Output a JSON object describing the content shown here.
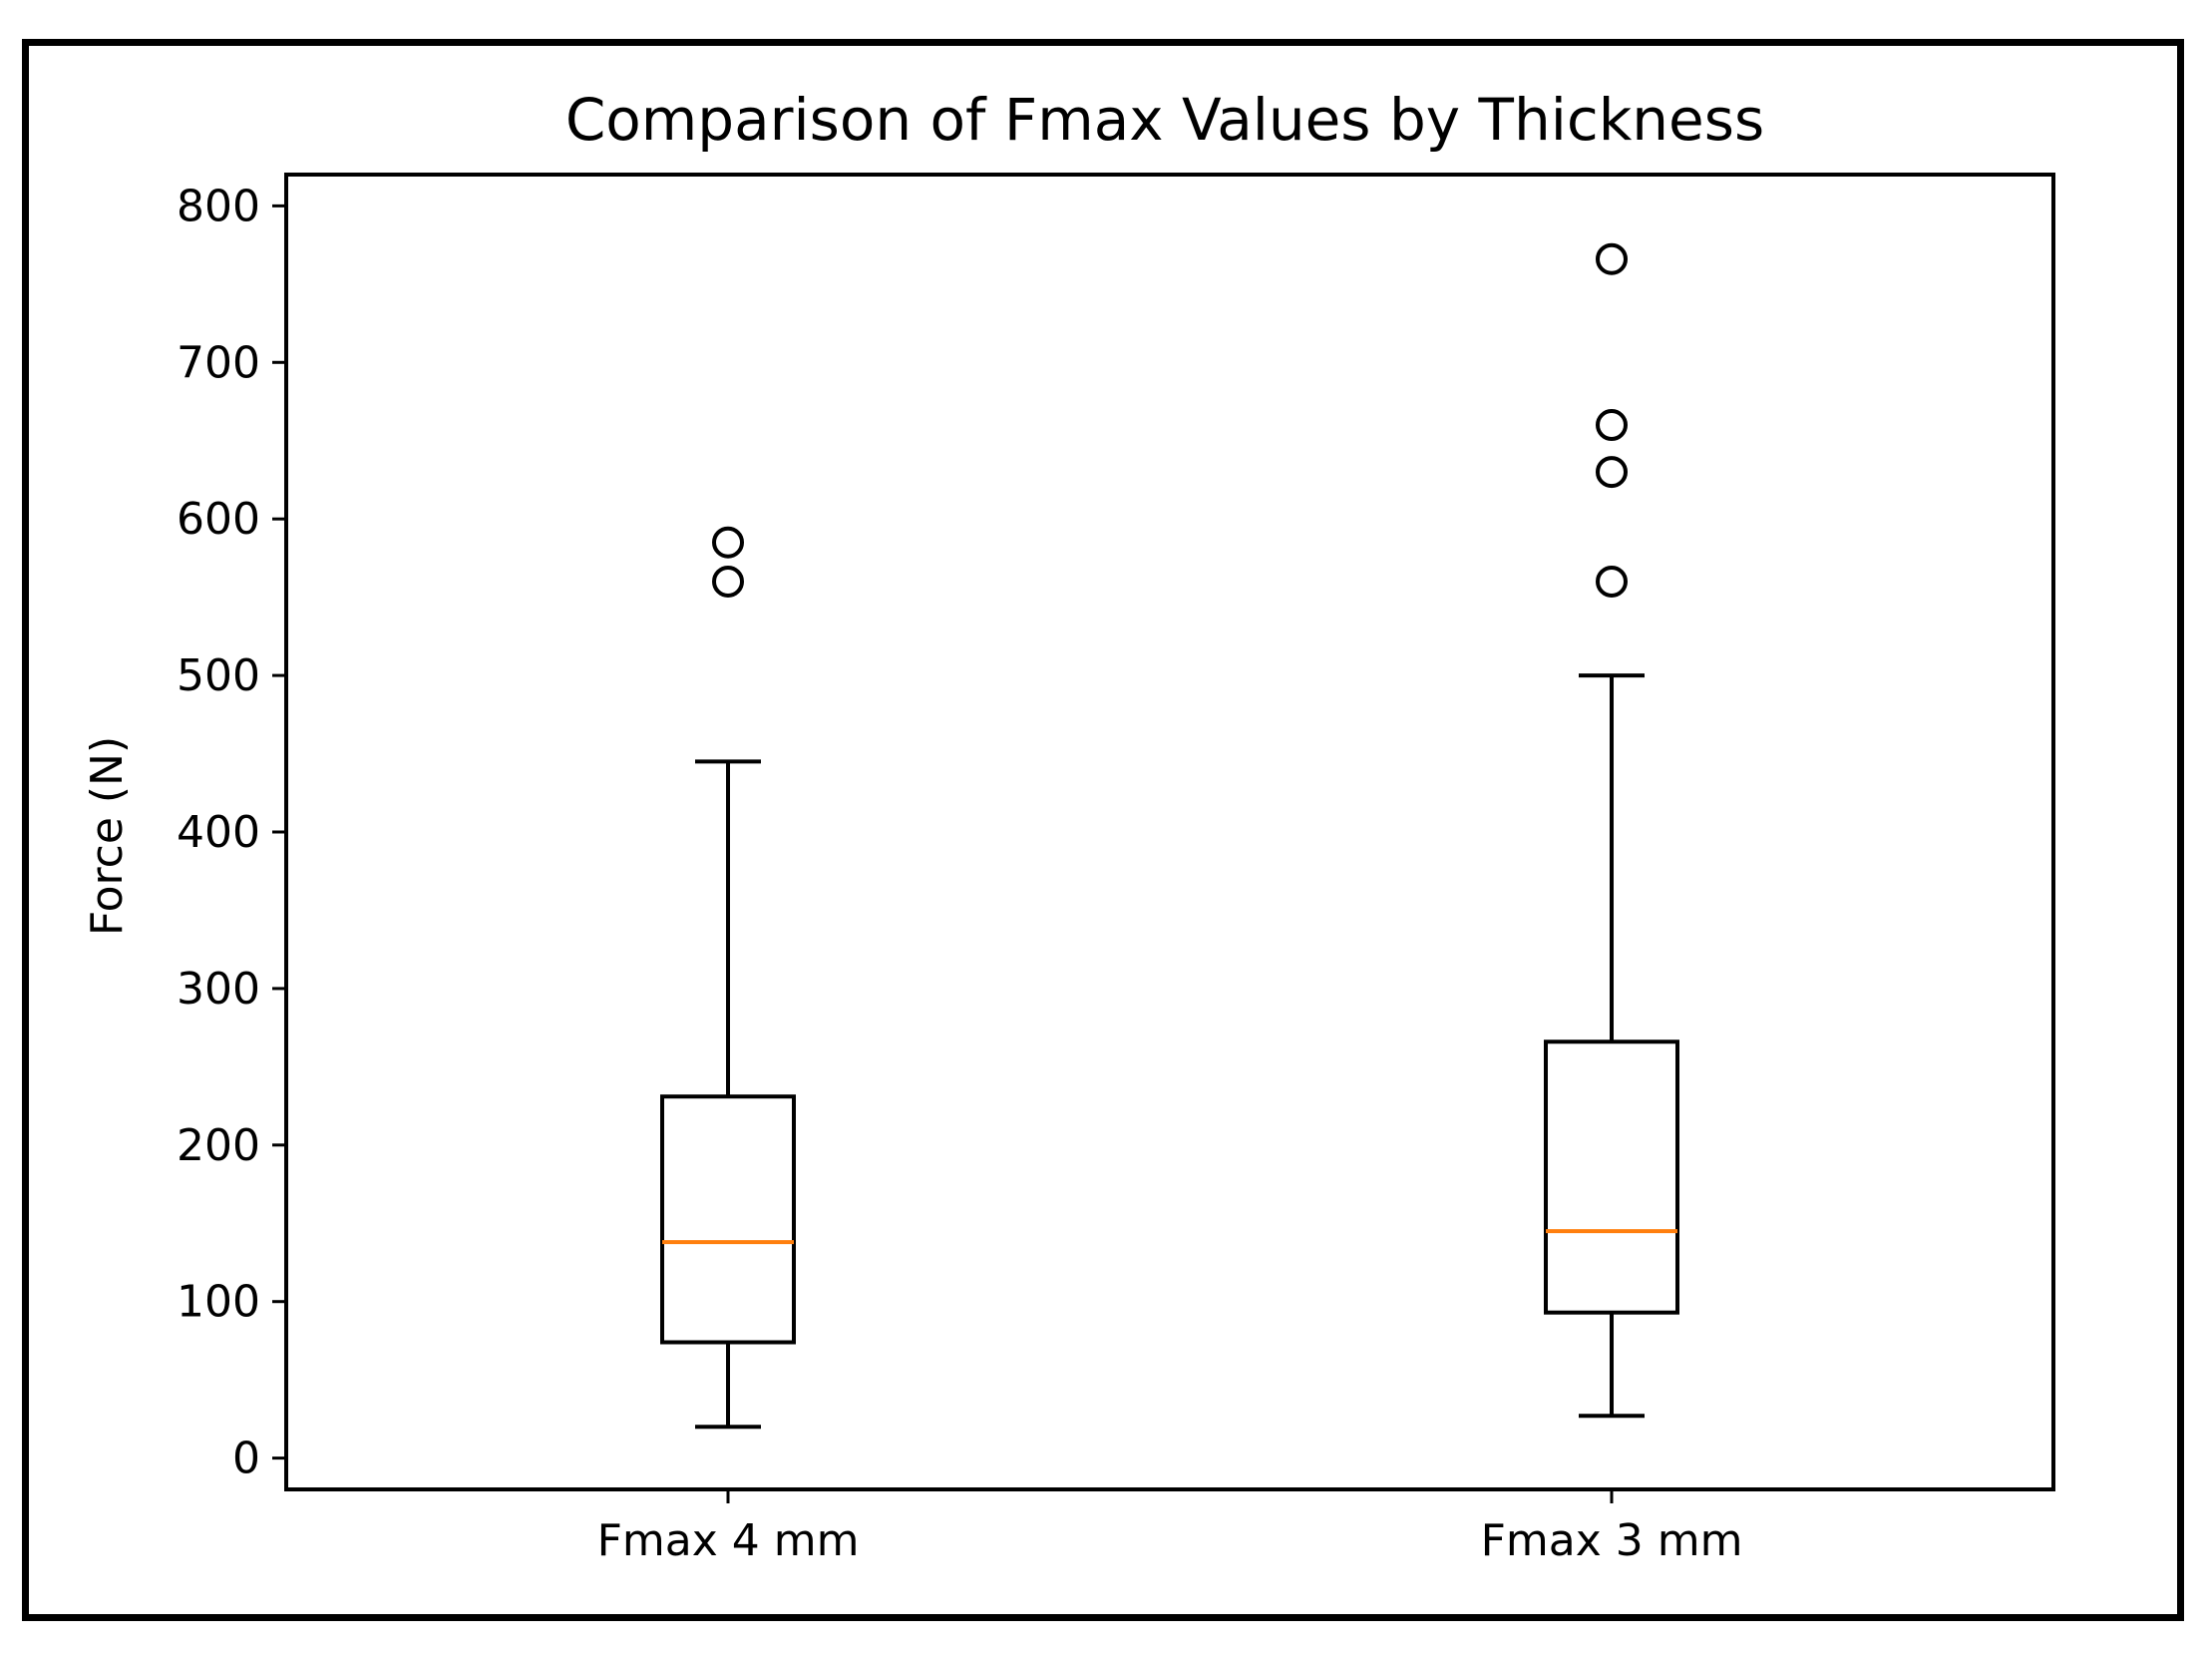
{
  "chart_data": {
    "type": "box",
    "title": "Comparison of Fmax Values by Thickness",
    "xlabel": "",
    "ylabel": "Force (N)",
    "ylim": [
      -20,
      820
    ],
    "yticks": [
      0,
      100,
      200,
      300,
      400,
      500,
      600,
      700,
      800
    ],
    "grid": false,
    "categories": [
      "Fmax 4 mm",
      "Fmax 3 mm"
    ],
    "boxes": [
      {
        "label": "Fmax 4 mm",
        "whisker_low": 20,
        "q1": 74,
        "median": 138,
        "q3": 231,
        "whisker_high": 445,
        "outliers": [
          560,
          585
        ]
      },
      {
        "label": "Fmax 3 mm",
        "whisker_low": 27,
        "q1": 93,
        "median": 145,
        "q3": 266,
        "whisker_high": 500,
        "outliers": [
          560,
          630,
          660,
          766
        ]
      }
    ],
    "colors": {
      "box": "#000000",
      "median": "#ff7f0e",
      "outlier": "#000000"
    }
  }
}
